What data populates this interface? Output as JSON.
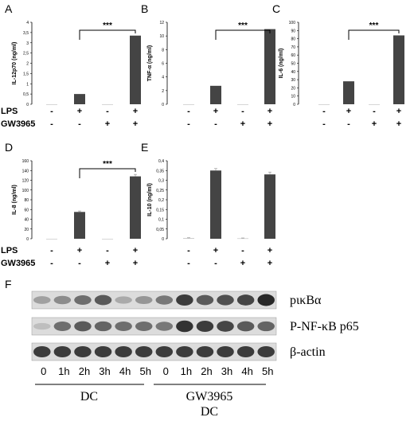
{
  "panel_labels": [
    "A",
    "B",
    "C",
    "D",
    "E",
    "F"
  ],
  "conditions": {
    "row_labels": [
      "LPS",
      "GW3965"
    ],
    "lps": [
      "-",
      "+",
      "-",
      "+"
    ],
    "gw": [
      "-",
      "-",
      "+",
      "+"
    ]
  },
  "significance": "***",
  "chart_data": [
    {
      "panel": "A",
      "type": "bar",
      "ylabel": "IL-12p70 (ng/ml)",
      "ylim": [
        0,
        4
      ],
      "yticks": [
        0,
        0.5,
        1,
        1.5,
        2,
        2.5,
        3,
        3.5,
        4
      ],
      "yticklabels": [
        "0",
        "0,5",
        "1",
        "1,5",
        "2",
        "2,5",
        "3",
        "3,5",
        "4"
      ],
      "values": [
        0,
        0.5,
        0,
        3.35
      ],
      "errors": [
        0,
        0,
        0,
        0
      ],
      "bracket": [
        1,
        3
      ]
    },
    {
      "panel": "B",
      "type": "bar",
      "ylabel": "TNF-α (ng/ml)",
      "ylim": [
        0,
        12
      ],
      "yticks": [
        0,
        2,
        4,
        6,
        8,
        10,
        12
      ],
      "yticklabels": [
        "0",
        "2",
        "4",
        "6",
        "8",
        "10",
        "12"
      ],
      "values": [
        0,
        2.7,
        0,
        11
      ],
      "errors": [
        0,
        0,
        0,
        0
      ],
      "bracket": [
        1,
        3
      ]
    },
    {
      "panel": "C",
      "type": "bar",
      "ylabel": "IL-6 (ng/ml)",
      "ylim": [
        0,
        100
      ],
      "yticks": [
        0,
        10,
        20,
        30,
        40,
        50,
        60,
        70,
        80,
        90,
        100
      ],
      "yticklabels": [
        "0",
        "10",
        "20",
        "30",
        "40",
        "50",
        "60",
        "70",
        "80",
        "90",
        "100"
      ],
      "values": [
        0,
        28,
        0,
        84
      ],
      "errors": [
        0,
        0,
        0,
        0
      ],
      "bracket": [
        1,
        3
      ]
    },
    {
      "panel": "D",
      "type": "bar",
      "ylabel": "IL-8 (ng/ml)",
      "ylim": [
        0,
        160
      ],
      "yticks": [
        0,
        20,
        40,
        60,
        80,
        100,
        120,
        140,
        160
      ],
      "yticklabels": [
        "0",
        "20",
        "40",
        "60",
        "80",
        "100",
        "120",
        "140",
        "160"
      ],
      "values": [
        0,
        55,
        0,
        128
      ],
      "errors": [
        0,
        2,
        0,
        4
      ],
      "bracket": [
        1,
        3
      ]
    },
    {
      "panel": "E",
      "type": "bar",
      "ylabel": "IL-10 (ng/ml)",
      "ylim": [
        0,
        0.4
      ],
      "yticks": [
        0,
        0.05,
        0.1,
        0.15,
        0.2,
        0.25,
        0.3,
        0.35,
        0.4
      ],
      "yticklabels": [
        "0",
        "0,05",
        "0,1",
        "0,15",
        "0,2",
        "0,25",
        "0,3",
        "0,35",
        "0,4"
      ],
      "values": [
        0.003,
        0.35,
        0.002,
        0.33
      ],
      "errors": [
        0.002,
        0.01,
        0.002,
        0.012
      ],
      "bracket": null
    }
  ],
  "blot": {
    "labels": [
      "pικBα",
      "P-NF-κB p65",
      "β-actin"
    ],
    "timepoints": [
      "0",
      "1h",
      "2h",
      "3h",
      "4h",
      "5h",
      "0",
      "1h",
      "2h",
      "3h",
      "4h",
      "5h"
    ],
    "group1": "DC",
    "group2_line1": "GW3965",
    "group2_line2": "DC",
    "intensity": [
      [
        0.35,
        0.45,
        0.6,
        0.7,
        0.3,
        0.4,
        0.55,
        0.85,
        0.7,
        0.75,
        0.8,
        0.95
      ],
      [
        0.2,
        0.6,
        0.7,
        0.65,
        0.6,
        0.6,
        0.55,
        0.9,
        0.85,
        0.8,
        0.7,
        0.65
      ],
      [
        0.85,
        0.85,
        0.85,
        0.85,
        0.85,
        0.85,
        0.85,
        0.85,
        0.85,
        0.85,
        0.85,
        0.85
      ]
    ]
  }
}
